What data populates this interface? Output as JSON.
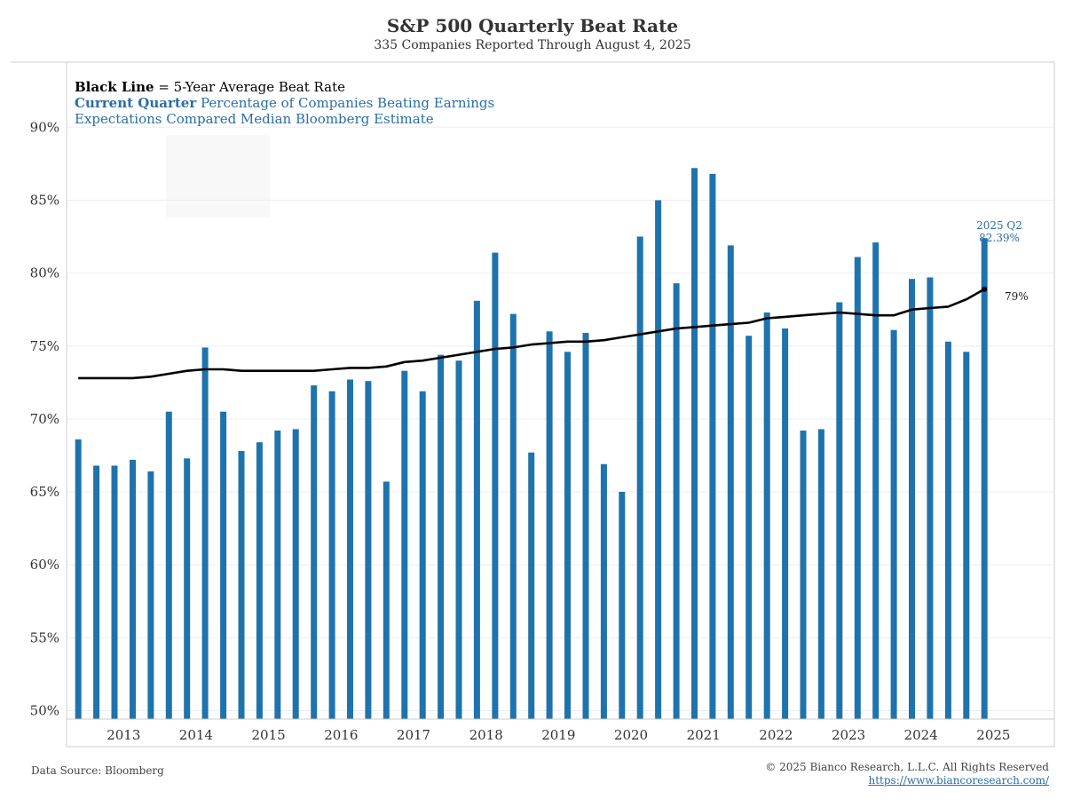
{
  "header": {
    "title": "S&P 500 Quarterly Beat Rate",
    "subtitle": "335 Companies Reported Through August 4, 2025"
  },
  "legend": {
    "black_line_bold": "Black Line",
    "black_line_text": " = 5-Year Average Beat Rate",
    "current_bold": "Current Quarter",
    "current_text": " Percentage of Companies Beating Earnings",
    "current_text2": "Expectations Compared Median Bloomberg Estimate"
  },
  "annotations": {
    "last_bar_label_1": "2025 Q2",
    "last_bar_label_2": "82.39%",
    "avg_end_label": "79%"
  },
  "footer": {
    "source": "Data Source: Bloomberg",
    "copyright": "© 2025 Bianco Research, L.L.C. All Rights Reserved",
    "url": "https://www.biancoresearch.com/"
  },
  "colors": {
    "bar": "#1f73ad",
    "line": "#000000",
    "annotation": "#2a6ea6",
    "grid": "#eeeeee"
  },
  "chart_data": {
    "type": "bar",
    "ylim": [
      50,
      95
    ],
    "y_ticks": [
      "50%",
      "55%",
      "60%",
      "65%",
      "70%",
      "75%",
      "80%",
      "85%",
      "90%"
    ],
    "year_labels": [
      "2013",
      "2014",
      "2015",
      "2016",
      "2017",
      "2018",
      "2019",
      "2020",
      "2021",
      "2022",
      "2023",
      "2024",
      "2025"
    ],
    "categories": [
      "2012 Q4",
      "2013 Q1",
      "2013 Q2",
      "2013 Q3",
      "2013 Q4",
      "2014 Q1",
      "2014 Q2",
      "2014 Q3",
      "2014 Q4",
      "2015 Q1",
      "2015 Q2",
      "2015 Q3",
      "2015 Q4",
      "2016 Q1",
      "2016 Q2",
      "2016 Q3",
      "2016 Q4",
      "2017 Q1",
      "2017 Q2",
      "2017 Q3",
      "2017 Q4",
      "2018 Q1",
      "2018 Q2",
      "2018 Q3",
      "2018 Q4",
      "2019 Q1",
      "2019 Q2",
      "2019 Q3",
      "2019 Q4",
      "2020 Q1",
      "2020 Q2",
      "2020 Q3",
      "2020 Q4",
      "2021 Q1",
      "2021 Q2",
      "2021 Q3",
      "2021 Q4",
      "2022 Q1",
      "2022 Q2",
      "2022 Q3",
      "2022 Q4",
      "2023 Q1",
      "2023 Q2",
      "2023 Q3",
      "2023 Q4",
      "2024 Q1",
      "2024 Q2",
      "2024 Q3",
      "2024 Q4",
      "2025 Q1",
      "2025 Q2"
    ],
    "series": [
      {
        "name": "Current Quarter",
        "type": "bar",
        "values": [
          68.6,
          66.8,
          66.8,
          67.2,
          66.4,
          70.5,
          67.3,
          74.9,
          70.5,
          67.8,
          68.4,
          69.2,
          69.3,
          72.3,
          71.9,
          72.7,
          72.6,
          65.7,
          73.3,
          71.9,
          74.4,
          74.0,
          78.1,
          81.4,
          77.2,
          67.7,
          76.0,
          74.6,
          75.9,
          66.9,
          65.0,
          82.5,
          85.0,
          79.3,
          87.2,
          86.8,
          81.9,
          75.7,
          77.3,
          76.2,
          69.2,
          69.3,
          78.0,
          81.1,
          82.1,
          76.1,
          79.6,
          79.7,
          75.3,
          74.6,
          82.39
        ]
      },
      {
        "name": "Black Line",
        "type": "line",
        "values": [
          72.8,
          72.8,
          72.8,
          72.8,
          72.9,
          73.1,
          73.3,
          73.4,
          73.4,
          73.3,
          73.3,
          73.3,
          73.3,
          73.3,
          73.4,
          73.5,
          73.5,
          73.6,
          73.9,
          74.0,
          74.2,
          74.4,
          74.6,
          74.8,
          74.9,
          75.1,
          75.2,
          75.3,
          75.3,
          75.4,
          75.6,
          75.8,
          76.0,
          76.2,
          76.3,
          76.4,
          76.5,
          76.6,
          76.9,
          77.0,
          77.1,
          77.2,
          77.3,
          77.2,
          77.1,
          77.1,
          77.5,
          77.6,
          77.7,
          78.2,
          78.9
        ]
      }
    ]
  }
}
